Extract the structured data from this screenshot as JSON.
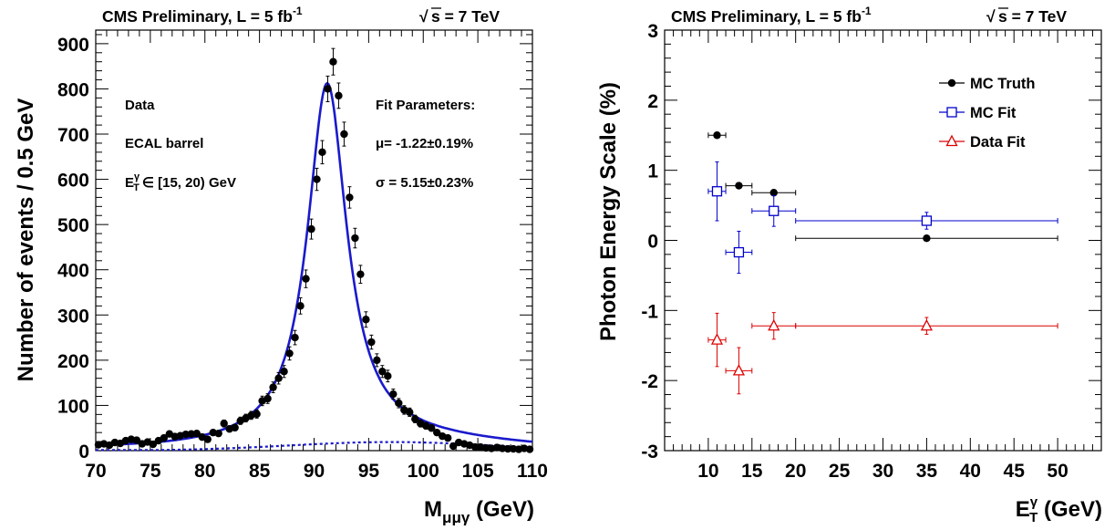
{
  "chart_data": [
    {
      "type": "scatter",
      "header_left": "CMS Preliminary, L = 5 fb",
      "header_left_sup": "-1",
      "header_right": "s = 7 TeV",
      "xlabel": "M",
      "xlabel_sub": "μμγ",
      "xlabel_unit": " (GeV)",
      "ylabel": "Number of events / 0.5 GeV",
      "xlim": [
        70,
        110
      ],
      "ylim": [
        0,
        930
      ],
      "xticks": [
        70,
        75,
        80,
        85,
        90,
        95,
        100,
        105,
        110
      ],
      "yticks": [
        0,
        100,
        200,
        300,
        400,
        500,
        600,
        700,
        800,
        900
      ],
      "annotations": {
        "data": "Data",
        "detector": "ECAL barrel",
        "et_prefix": "E",
        "et_sup": "γ",
        "et_sub": "T",
        "et_range": "∈ [15, 20) GeV",
        "fit_title": "Fit Parameters:",
        "mu": "μ= -1.22±0.19%",
        "sigma": "σ = 5.15±0.23%"
      },
      "fit": {
        "peak": 91.2,
        "amplitude": 795,
        "width": 2.2
      },
      "points": [
        [
          70.25,
          13
        ],
        [
          70.75,
          15
        ],
        [
          71.25,
          12
        ],
        [
          71.75,
          18
        ],
        [
          72.25,
          16
        ],
        [
          72.75,
          22
        ],
        [
          73.25,
          25
        ],
        [
          73.75,
          23
        ],
        [
          74.25,
          15
        ],
        [
          74.75,
          19
        ],
        [
          75.25,
          14
        ],
        [
          75.75,
          22
        ],
        [
          76.25,
          28
        ],
        [
          76.75,
          37
        ],
        [
          77.25,
          31
        ],
        [
          77.75,
          33
        ],
        [
          78.25,
          36
        ],
        [
          78.75,
          37
        ],
        [
          79.25,
          38
        ],
        [
          79.75,
          30
        ],
        [
          80.25,
          25
        ],
        [
          80.75,
          40
        ],
        [
          81.25,
          38
        ],
        [
          81.75,
          60
        ],
        [
          82.25,
          48
        ],
        [
          82.75,
          51
        ],
        [
          83.25,
          66
        ],
        [
          83.75,
          72
        ],
        [
          84.25,
          78
        ],
        [
          84.75,
          81
        ],
        [
          85.25,
          110
        ],
        [
          85.75,
          115
        ],
        [
          86.25,
          140
        ],
        [
          86.75,
          160
        ],
        [
          87.25,
          175
        ],
        [
          87.75,
          215
        ],
        [
          88.25,
          250
        ],
        [
          88.75,
          320
        ],
        [
          89.25,
          380
        ],
        [
          89.75,
          490
        ],
        [
          90.25,
          600
        ],
        [
          90.75,
          660
        ],
        [
          91.25,
          800
        ],
        [
          91.75,
          860
        ],
        [
          92.25,
          785
        ],
        [
          92.75,
          700
        ],
        [
          93.25,
          560
        ],
        [
          93.75,
          470
        ],
        [
          94.25,
          390
        ],
        [
          94.75,
          290
        ],
        [
          95.25,
          240
        ],
        [
          95.75,
          200
        ],
        [
          96.25,
          175
        ],
        [
          96.75,
          165
        ],
        [
          97.25,
          125
        ],
        [
          97.75,
          105
        ],
        [
          98.25,
          90
        ],
        [
          98.75,
          85
        ],
        [
          99.25,
          70
        ],
        [
          99.75,
          60
        ],
        [
          100.25,
          55
        ],
        [
          100.75,
          50
        ],
        [
          101.25,
          40
        ],
        [
          101.75,
          32
        ],
        [
          102.25,
          28
        ],
        [
          102.75,
          10
        ],
        [
          103.25,
          18
        ],
        [
          103.75,
          15
        ],
        [
          104.25,
          12
        ],
        [
          104.75,
          8
        ],
        [
          105.25,
          8
        ],
        [
          105.75,
          6
        ],
        [
          106.25,
          5
        ],
        [
          106.75,
          7
        ],
        [
          107.25,
          5
        ],
        [
          107.75,
          4
        ],
        [
          108.25,
          4
        ],
        [
          108.75,
          3
        ],
        [
          109.25,
          5
        ],
        [
          109.75,
          3
        ]
      ]
    },
    {
      "type": "scatter",
      "header_left": "CMS Preliminary, L = 5 fb",
      "header_left_sup": "-1",
      "header_right": "s = 7 TeV",
      "xlabel": "E",
      "xlabel_sup": "γ",
      "xlabel_sub": "T",
      "xlabel_unit": " (GeV)",
      "ylabel": "Photon Energy Scale (%)",
      "xlim": [
        5,
        55
      ],
      "ylim": [
        -3,
        3
      ],
      "xticks": [
        10,
        15,
        20,
        25,
        30,
        35,
        40,
        45,
        50
      ],
      "yticks": [
        -3,
        -2,
        -1,
        0,
        1,
        2,
        3
      ],
      "legend_position": "top-right",
      "series": [
        {
          "name": "MC Truth",
          "color": "#000000",
          "marker": "filled-circle",
          "points": [
            {
              "x": 11,
              "xlo": 10,
              "xhi": 12,
              "y": 1.5,
              "err": 0.04
            },
            {
              "x": 13.5,
              "xlo": 12,
              "xhi": 15,
              "y": 0.78,
              "err": 0.03
            },
            {
              "x": 17.5,
              "xlo": 15,
              "xhi": 20,
              "y": 0.68,
              "err": 0.03
            },
            {
              "x": 35,
              "xlo": 20,
              "xhi": 50,
              "y": 0.03,
              "err": 0.02
            }
          ]
        },
        {
          "name": "MC Fit",
          "color": "#0000cc",
          "marker": "open-square",
          "points": [
            {
              "x": 11,
              "xlo": 10,
              "xhi": 12,
              "y": 0.7,
              "err": 0.42
            },
            {
              "x": 13.5,
              "xlo": 12,
              "xhi": 15,
              "y": -0.17,
              "err": 0.3
            },
            {
              "x": 17.5,
              "xlo": 15,
              "xhi": 20,
              "y": 0.42,
              "err": 0.22
            },
            {
              "x": 35,
              "xlo": 20,
              "xhi": 50,
              "y": 0.28,
              "err": 0.12
            }
          ]
        },
        {
          "name": "Data Fit",
          "color": "#dd0000",
          "marker": "open-triangle",
          "points": [
            {
              "x": 11,
              "xlo": 10,
              "xhi": 12,
              "y": -1.42,
              "err": 0.38
            },
            {
              "x": 13.5,
              "xlo": 12,
              "xhi": 15,
              "y": -1.86,
              "err": 0.33
            },
            {
              "x": 17.5,
              "xlo": 15,
              "xhi": 20,
              "y": -1.22,
              "err": 0.19
            },
            {
              "x": 35,
              "xlo": 20,
              "xhi": 50,
              "y": -1.22,
              "err": 0.12
            }
          ]
        }
      ]
    }
  ]
}
